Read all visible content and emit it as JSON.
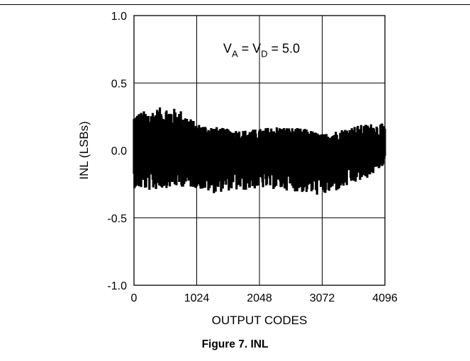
{
  "chart_data": {
    "type": "line",
    "xlabel": "OUTPUT CODES",
    "ylabel": "INL (LSBs)",
    "xlim": [
      0,
      4096
    ],
    "ylim": [
      -1.0,
      1.0
    ],
    "x_ticks": [
      "0",
      "1024",
      "2048",
      "3072",
      "4096"
    ],
    "y_ticks": [
      "1.0",
      "0.5",
      "0.0",
      "-0.5",
      "-1.0"
    ],
    "grid": true,
    "annotation": {
      "parts": [
        "V",
        "A",
        " = V",
        "D",
        " = 5.0"
      ],
      "x": 2048,
      "y": 0.75
    },
    "series": [
      {
        "x": [
          0,
          256,
          512,
          768,
          1024,
          1280,
          1536,
          1792,
          2048,
          2304,
          2560,
          2816,
          3072,
          3328,
          3584,
          3840,
          4096
        ],
        "upper": [
          0.28,
          0.3,
          0.33,
          0.3,
          0.2,
          0.18,
          0.16,
          0.15,
          0.16,
          0.18,
          0.17,
          0.16,
          0.12,
          0.15,
          0.18,
          0.2,
          0.2
        ],
        "lower": [
          -0.28,
          -0.3,
          -0.28,
          -0.27,
          -0.28,
          -0.32,
          -0.3,
          -0.3,
          -0.28,
          -0.29,
          -0.3,
          -0.32,
          -0.34,
          -0.3,
          -0.25,
          -0.2,
          -0.1
        ],
        "color": "#000000"
      }
    ]
  },
  "caption": "Figure 7. INL"
}
